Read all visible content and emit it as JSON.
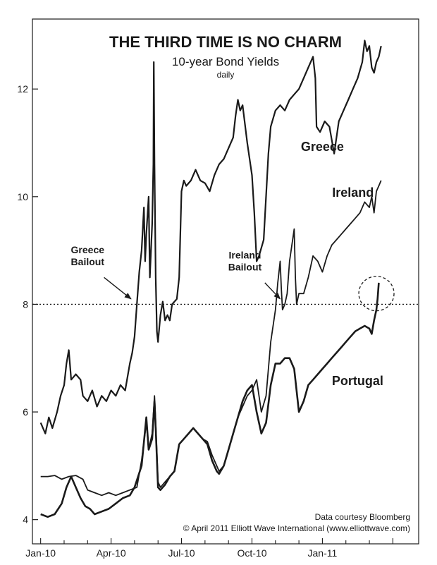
{
  "chart_data": {
    "type": "line",
    "title": "THE THIRD TIME IS NO CHARM",
    "subtitle": "10-year Bond Yields",
    "frequency": "daily",
    "x_ticks": [
      "Jan-10",
      "Apr-10",
      "Jul-10",
      "Oct-10",
      "Jan-11"
    ],
    "y_ticks": [
      "4",
      "6",
      "8",
      "10",
      "12"
    ],
    "ylim": [
      3.55,
      13.3
    ],
    "xlim": [
      -0.35,
      16.1
    ],
    "reference_line": {
      "y": 8,
      "style": "dotted"
    },
    "grid": false,
    "series": [
      {
        "name": "Greece",
        "points": [
          [
            0,
            5.8
          ],
          [
            0.2,
            5.6
          ],
          [
            0.35,
            5.9
          ],
          [
            0.5,
            5.7
          ],
          [
            0.7,
            6.0
          ],
          [
            0.85,
            6.3
          ],
          [
            1.0,
            6.5
          ],
          [
            1.1,
            6.9
          ],
          [
            1.2,
            7.15
          ],
          [
            1.3,
            6.6
          ],
          [
            1.5,
            6.7
          ],
          [
            1.7,
            6.6
          ],
          [
            1.8,
            6.3
          ],
          [
            2.0,
            6.2
          ],
          [
            2.2,
            6.4
          ],
          [
            2.4,
            6.1
          ],
          [
            2.6,
            6.3
          ],
          [
            2.8,
            6.2
          ],
          [
            3.0,
            6.4
          ],
          [
            3.2,
            6.3
          ],
          [
            3.4,
            6.5
          ],
          [
            3.6,
            6.4
          ],
          [
            3.8,
            6.9
          ],
          [
            3.9,
            7.1
          ],
          [
            4.0,
            7.4
          ],
          [
            4.1,
            8.0
          ],
          [
            4.2,
            8.6
          ],
          [
            4.3,
            9.0
          ],
          [
            4.4,
            9.8
          ],
          [
            4.45,
            8.8
          ],
          [
            4.5,
            9.3
          ],
          [
            4.6,
            10.0
          ],
          [
            4.65,
            8.5
          ],
          [
            4.75,
            9.5
          ],
          [
            4.8,
            10.6
          ],
          [
            4.82,
            12.5
          ],
          [
            4.85,
            10.6
          ],
          [
            4.9,
            8.5
          ],
          [
            4.95,
            7.5
          ],
          [
            5.0,
            7.3
          ],
          [
            5.1,
            7.8
          ],
          [
            5.2,
            8.05
          ],
          [
            5.3,
            7.7
          ],
          [
            5.4,
            7.8
          ],
          [
            5.5,
            7.7
          ],
          [
            5.6,
            8.0
          ],
          [
            5.8,
            8.1
          ],
          [
            5.9,
            8.5
          ],
          [
            6.0,
            10.1
          ],
          [
            6.1,
            10.3
          ],
          [
            6.2,
            10.2
          ],
          [
            6.4,
            10.3
          ],
          [
            6.6,
            10.5
          ],
          [
            6.8,
            10.3
          ],
          [
            7.0,
            10.25
          ],
          [
            7.2,
            10.1
          ],
          [
            7.4,
            10.4
          ],
          [
            7.6,
            10.6
          ],
          [
            7.8,
            10.7
          ],
          [
            8.0,
            10.9
          ],
          [
            8.2,
            11.1
          ],
          [
            8.3,
            11.5
          ],
          [
            8.4,
            11.8
          ],
          [
            8.5,
            11.6
          ],
          [
            8.6,
            11.7
          ],
          [
            8.8,
            11.0
          ],
          [
            9.0,
            10.4
          ],
          [
            9.1,
            9.7
          ],
          [
            9.2,
            8.8
          ],
          [
            9.3,
            8.9
          ],
          [
            9.5,
            9.2
          ],
          [
            9.7,
            10.8
          ],
          [
            9.8,
            11.3
          ],
          [
            10.0,
            11.6
          ],
          [
            10.2,
            11.7
          ],
          [
            10.4,
            11.6
          ],
          [
            10.6,
            11.8
          ],
          [
            10.8,
            11.9
          ],
          [
            11.0,
            12.0
          ],
          [
            11.2,
            12.2
          ],
          [
            11.4,
            12.4
          ],
          [
            11.6,
            12.6
          ],
          [
            11.7,
            12.2
          ],
          [
            11.75,
            11.3
          ],
          [
            11.9,
            11.2
          ],
          [
            12.1,
            11.4
          ],
          [
            12.3,
            11.3
          ],
          [
            12.5,
            10.8
          ],
          [
            12.7,
            11.4
          ],
          [
            12.9,
            11.6
          ],
          [
            13.1,
            11.8
          ],
          [
            13.3,
            12.0
          ],
          [
            13.5,
            12.2
          ],
          [
            13.7,
            12.5
          ],
          [
            13.8,
            12.9
          ],
          [
            13.9,
            12.7
          ],
          [
            14.0,
            12.8
          ],
          [
            14.1,
            12.4
          ],
          [
            14.2,
            12.3
          ],
          [
            14.3,
            12.5
          ],
          [
            14.4,
            12.6
          ],
          [
            14.5,
            12.8
          ]
        ]
      },
      {
        "name": "Ireland",
        "points": [
          [
            0,
            4.8
          ],
          [
            0.3,
            4.8
          ],
          [
            0.6,
            4.82
          ],
          [
            0.9,
            4.75
          ],
          [
            1.2,
            4.8
          ],
          [
            1.5,
            4.82
          ],
          [
            1.8,
            4.75
          ],
          [
            2.0,
            4.55
          ],
          [
            2.3,
            4.5
          ],
          [
            2.6,
            4.45
          ],
          [
            2.9,
            4.5
          ],
          [
            3.2,
            4.45
          ],
          [
            3.5,
            4.5
          ],
          [
            3.8,
            4.55
          ],
          [
            4.1,
            4.6
          ],
          [
            4.3,
            5.1
          ],
          [
            4.5,
            5.8
          ],
          [
            4.6,
            5.3
          ],
          [
            4.75,
            5.6
          ],
          [
            4.85,
            6.3
          ],
          [
            4.9,
            5.8
          ],
          [
            5.0,
            4.7
          ],
          [
            5.1,
            4.6
          ],
          [
            5.3,
            4.7
          ],
          [
            5.5,
            4.8
          ],
          [
            5.7,
            4.9
          ],
          [
            5.9,
            5.4
          ],
          [
            6.1,
            5.5
          ],
          [
            6.3,
            5.6
          ],
          [
            6.5,
            5.7
          ],
          [
            6.7,
            5.6
          ],
          [
            6.9,
            5.5
          ],
          [
            7.1,
            5.45
          ],
          [
            7.3,
            5.2
          ],
          [
            7.5,
            5.0
          ],
          [
            7.6,
            4.9
          ],
          [
            7.8,
            5.0
          ],
          [
            8.0,
            5.3
          ],
          [
            8.2,
            5.6
          ],
          [
            8.4,
            5.9
          ],
          [
            8.6,
            6.1
          ],
          [
            8.8,
            6.3
          ],
          [
            9.0,
            6.4
          ],
          [
            9.2,
            6.6
          ],
          [
            9.4,
            6.0
          ],
          [
            9.6,
            6.3
          ],
          [
            9.8,
            7.3
          ],
          [
            10.0,
            7.9
          ],
          [
            10.1,
            8.4
          ],
          [
            10.2,
            8.8
          ],
          [
            10.25,
            8.3
          ],
          [
            10.3,
            7.9
          ],
          [
            10.4,
            8.0
          ],
          [
            10.5,
            8.2
          ],
          [
            10.6,
            8.8
          ],
          [
            10.7,
            9.1
          ],
          [
            10.8,
            9.4
          ],
          [
            10.85,
            8.5
          ],
          [
            10.9,
            8.0
          ],
          [
            11.0,
            8.2
          ],
          [
            11.2,
            8.2
          ],
          [
            11.4,
            8.5
          ],
          [
            11.6,
            8.9
          ],
          [
            11.8,
            8.8
          ],
          [
            12.0,
            8.6
          ],
          [
            12.2,
            8.9
          ],
          [
            12.4,
            9.1
          ],
          [
            12.6,
            9.2
          ],
          [
            12.8,
            9.3
          ],
          [
            13.0,
            9.4
          ],
          [
            13.2,
            9.5
          ],
          [
            13.4,
            9.6
          ],
          [
            13.6,
            9.7
          ],
          [
            13.8,
            9.9
          ],
          [
            14.0,
            9.8
          ],
          [
            14.1,
            10.0
          ],
          [
            14.2,
            9.7
          ],
          [
            14.3,
            10.1
          ],
          [
            14.4,
            10.2
          ],
          [
            14.5,
            10.3
          ]
        ]
      },
      {
        "name": "Portugal",
        "points": [
          [
            0,
            4.1
          ],
          [
            0.3,
            4.05
          ],
          [
            0.6,
            4.1
          ],
          [
            0.9,
            4.3
          ],
          [
            1.1,
            4.6
          ],
          [
            1.3,
            4.8
          ],
          [
            1.5,
            4.6
          ],
          [
            1.7,
            4.4
          ],
          [
            1.9,
            4.25
          ],
          [
            2.1,
            4.2
          ],
          [
            2.3,
            4.1
          ],
          [
            2.6,
            4.15
          ],
          [
            2.9,
            4.2
          ],
          [
            3.2,
            4.3
          ],
          [
            3.5,
            4.4
          ],
          [
            3.8,
            4.45
          ],
          [
            4.0,
            4.6
          ],
          [
            4.3,
            5.0
          ],
          [
            4.5,
            5.9
          ],
          [
            4.6,
            5.3
          ],
          [
            4.75,
            5.5
          ],
          [
            4.85,
            6.2
          ],
          [
            4.9,
            5.7
          ],
          [
            5.0,
            4.6
          ],
          [
            5.1,
            4.55
          ],
          [
            5.3,
            4.65
          ],
          [
            5.5,
            4.8
          ],
          [
            5.7,
            4.9
          ],
          [
            5.9,
            5.4
          ],
          [
            6.1,
            5.5
          ],
          [
            6.3,
            5.6
          ],
          [
            6.5,
            5.7
          ],
          [
            6.7,
            5.6
          ],
          [
            6.9,
            5.5
          ],
          [
            7.1,
            5.4
          ],
          [
            7.3,
            5.1
          ],
          [
            7.5,
            4.9
          ],
          [
            7.6,
            4.85
          ],
          [
            7.8,
            5.0
          ],
          [
            8.0,
            5.3
          ],
          [
            8.2,
            5.6
          ],
          [
            8.4,
            5.9
          ],
          [
            8.6,
            6.2
          ],
          [
            8.8,
            6.4
          ],
          [
            9.0,
            6.5
          ],
          [
            9.2,
            6.0
          ],
          [
            9.4,
            5.6
          ],
          [
            9.6,
            5.8
          ],
          [
            9.8,
            6.5
          ],
          [
            10.0,
            6.9
          ],
          [
            10.2,
            6.9
          ],
          [
            10.4,
            7.0
          ],
          [
            10.6,
            7.0
          ],
          [
            10.8,
            6.8
          ],
          [
            11.0,
            6.0
          ],
          [
            11.2,
            6.2
          ],
          [
            11.4,
            6.5
          ],
          [
            11.6,
            6.6
          ],
          [
            11.8,
            6.7
          ],
          [
            12.0,
            6.8
          ],
          [
            12.2,
            6.9
          ],
          [
            12.4,
            7.0
          ],
          [
            12.6,
            7.1
          ],
          [
            12.8,
            7.2
          ],
          [
            13.0,
            7.3
          ],
          [
            13.2,
            7.4
          ],
          [
            13.4,
            7.5
          ],
          [
            13.6,
            7.55
          ],
          [
            13.8,
            7.6
          ],
          [
            14.0,
            7.55
          ],
          [
            14.1,
            7.45
          ],
          [
            14.2,
            7.7
          ],
          [
            14.3,
            7.9
          ],
          [
            14.35,
            8.1
          ],
          [
            14.4,
            8.4
          ]
        ]
      }
    ],
    "series_labels": [
      {
        "text": "Greece",
        "x": 12.0,
        "y": 10.85
      },
      {
        "text": "Ireland",
        "x": 13.3,
        "y": 10.0
      },
      {
        "text": "Portugal",
        "x": 13.5,
        "y": 6.5
      }
    ],
    "annotations": [
      {
        "lines": [
          "Greece",
          "Bailout"
        ],
        "text_x": 2.0,
        "text_y": 8.95,
        "arrow_from": [
          2.7,
          8.5
        ],
        "arrow_to": [
          3.85,
          8.1
        ]
      },
      {
        "lines": [
          "Ireland",
          "Bailout"
        ],
        "text_x": 8.7,
        "text_y": 8.85,
        "arrow_from": [
          9.55,
          8.4
        ],
        "arrow_to": [
          10.2,
          8.1
        ]
      }
    ],
    "highlight_ellipse": {
      "cx": 14.3,
      "cy": 8.2,
      "rx": 0.75,
      "ry": 0.32,
      "style": "dashed"
    },
    "credits": [
      "Data courtesy Bloomberg",
      "© April 2011 Elliott Wave International (www.elliottwave.com)"
    ]
  }
}
